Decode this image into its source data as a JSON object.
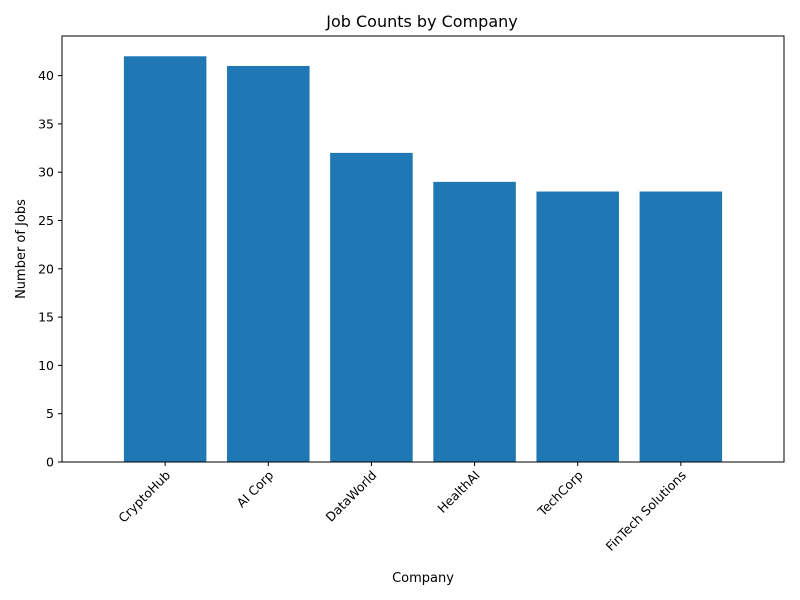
{
  "chart_data": {
    "type": "bar",
    "title": "Job Counts by Company",
    "xlabel": "Company",
    "ylabel": "Number of Jobs",
    "categories": [
      "CryptoHub",
      "AI Corp",
      "DataWorld",
      "HealthAI",
      "TechCorp",
      "FinTech Solutions"
    ],
    "values": [
      42,
      41,
      32,
      29,
      28,
      28
    ],
    "ylim": [
      0,
      44.1
    ],
    "yticks": [
      0,
      5,
      10,
      15,
      20,
      25,
      30,
      35,
      40
    ],
    "bar_color": "#1f77b4",
    "grid": false,
    "xtick_rotation": 45
  }
}
